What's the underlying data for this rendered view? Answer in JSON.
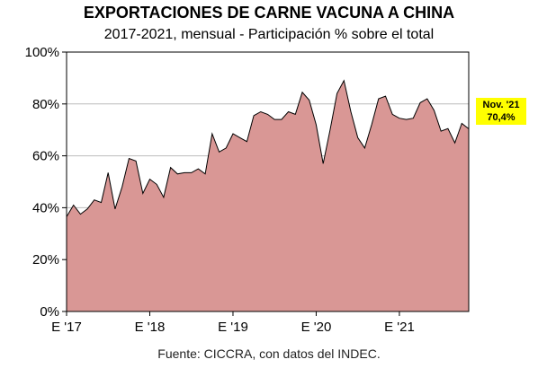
{
  "chart_data": {
    "type": "area",
    "title": "EXPORTACIONES DE CARNE VACUNA A CHINA",
    "subtitle": "2017-2021, mensual - Participación % sobre el total",
    "source": "Fuente: CICCRA, con datos del INDEC.",
    "y_tick_labels": [
      "0%",
      "20%",
      "40%",
      "60%",
      "80%",
      "100%"
    ],
    "y_ticks": [
      0,
      20,
      40,
      60,
      80,
      100
    ],
    "ylim": [
      0,
      100
    ],
    "x_tick_labels": [
      "E '17",
      "E '18",
      "E '19",
      "E '20",
      "E '21"
    ],
    "x_tick_indices": [
      0,
      12,
      24,
      36,
      48
    ],
    "grid": true,
    "fill_color": "#d99795",
    "line_color": "#000000",
    "values": [
      36.5,
      41,
      37.5,
      39.5,
      43,
      42,
      53.5,
      39.5,
      48,
      59,
      58,
      45.5,
      51,
      49,
      44,
      55.5,
      53,
      53.5,
      53.5,
      55,
      53,
      68.5,
      61.5,
      63,
      68.5,
      67,
      65.5,
      75.5,
      77,
      76,
      74,
      74,
      77,
      76,
      84.5,
      81.5,
      72,
      57,
      70,
      84,
      89,
      77,
      67,
      63,
      72,
      82,
      83,
      76,
      74.5,
      74,
      74.5,
      80.5,
      82,
      77.5,
      69.5,
      70.5,
      65,
      72.5,
      70.4
    ],
    "callout": {
      "line1": "Nov. '21",
      "line2": "70,4%",
      "background": "#ffff00"
    }
  }
}
